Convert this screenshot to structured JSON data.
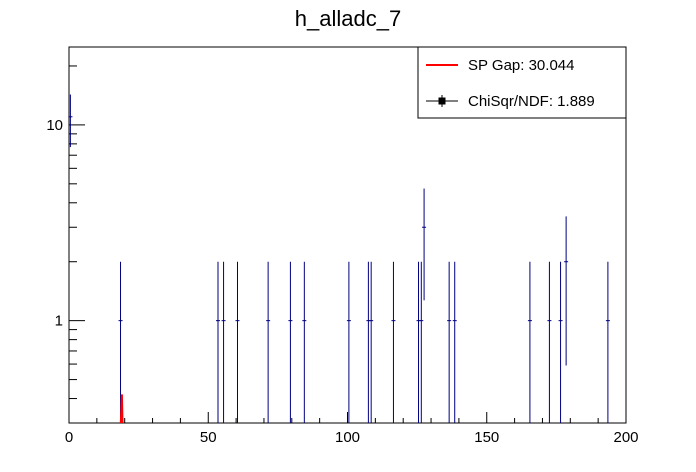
{
  "chart_data": {
    "type": "scatter",
    "title": "h_alladc_7",
    "xlabel": "",
    "ylabel": "",
    "xlim": [
      0,
      200
    ],
    "ylim": [
      0.3,
      25
    ],
    "yscale": "log",
    "x_ticks": [
      0,
      50,
      100,
      150,
      200
    ],
    "x_tick_labels": [
      "0",
      "50",
      "100",
      "150",
      "200"
    ],
    "y_ticks": [
      1,
      10
    ],
    "y_tick_labels": [
      "1",
      "10"
    ],
    "series": [
      {
        "name": "ChiSqr/NDF: 1.889",
        "style": "errorbars",
        "color": "#000080",
        "points": [
          {
            "x": 0.5,
            "y": 11,
            "err_low": 3.3,
            "err_high": 3.3
          },
          {
            "x": 18.5,
            "y": 1,
            "err_low": 1,
            "err_high": 1
          },
          {
            "x": 53.5,
            "y": 1,
            "err_low": 1,
            "err_high": 1
          },
          {
            "x": 55.5,
            "y": 1,
            "err_low": 1,
            "err_high": 1
          },
          {
            "x": 60.5,
            "y": 1,
            "err_low": 1,
            "err_high": 1
          },
          {
            "x": 71.5,
            "y": 1,
            "err_low": 1,
            "err_high": 1
          },
          {
            "x": 79.5,
            "y": 1,
            "err_low": 1,
            "err_high": 1
          },
          {
            "x": 84.5,
            "y": 1,
            "err_low": 1,
            "err_high": 1
          },
          {
            "x": 100.5,
            "y": 1,
            "err_low": 1,
            "err_high": 1
          },
          {
            "x": 107.5,
            "y": 1,
            "err_low": 1,
            "err_high": 1
          },
          {
            "x": 108.5,
            "y": 1,
            "err_low": 1,
            "err_high": 1
          },
          {
            "x": 116.5,
            "y": 1,
            "err_low": 1,
            "err_high": 1
          },
          {
            "x": 125.5,
            "y": 1,
            "err_low": 1,
            "err_high": 1
          },
          {
            "x": 126.5,
            "y": 1,
            "err_low": 1,
            "err_high": 1
          },
          {
            "x": 127.5,
            "y": 3,
            "err_low": 1.73,
            "err_high": 1.73
          },
          {
            "x": 136.5,
            "y": 1,
            "err_low": 1,
            "err_high": 1
          },
          {
            "x": 138.5,
            "y": 1,
            "err_low": 1,
            "err_high": 1
          },
          {
            "x": 165.5,
            "y": 1,
            "err_low": 1,
            "err_high": 1
          },
          {
            "x": 172.5,
            "y": 1,
            "err_low": 1,
            "err_high": 1
          },
          {
            "x": 176.5,
            "y": 1,
            "err_low": 1,
            "err_high": 1
          },
          {
            "x": 178.5,
            "y": 2,
            "err_low": 1.41,
            "err_high": 1.41
          },
          {
            "x": 193.5,
            "y": 1,
            "err_low": 1,
            "err_high": 1
          }
        ]
      },
      {
        "name": "SP Gap: 30.044",
        "style": "line",
        "color": "#ff0000",
        "points": [
          {
            "x": 18.6,
            "y": 0.3
          },
          {
            "x": 18.8,
            "y": 0.35
          },
          {
            "x": 19.0,
            "y": 0.42
          },
          {
            "x": 19.2,
            "y": 0.3
          }
        ]
      }
    ],
    "legend": {
      "position": "top-right",
      "entries": [
        {
          "label": "SP Gap: 30.044",
          "color": "#ff0000",
          "marker": "line"
        },
        {
          "label": "ChiSqr/NDF: 1.889",
          "color": "#000000",
          "marker": "square-errorbar"
        }
      ]
    }
  }
}
